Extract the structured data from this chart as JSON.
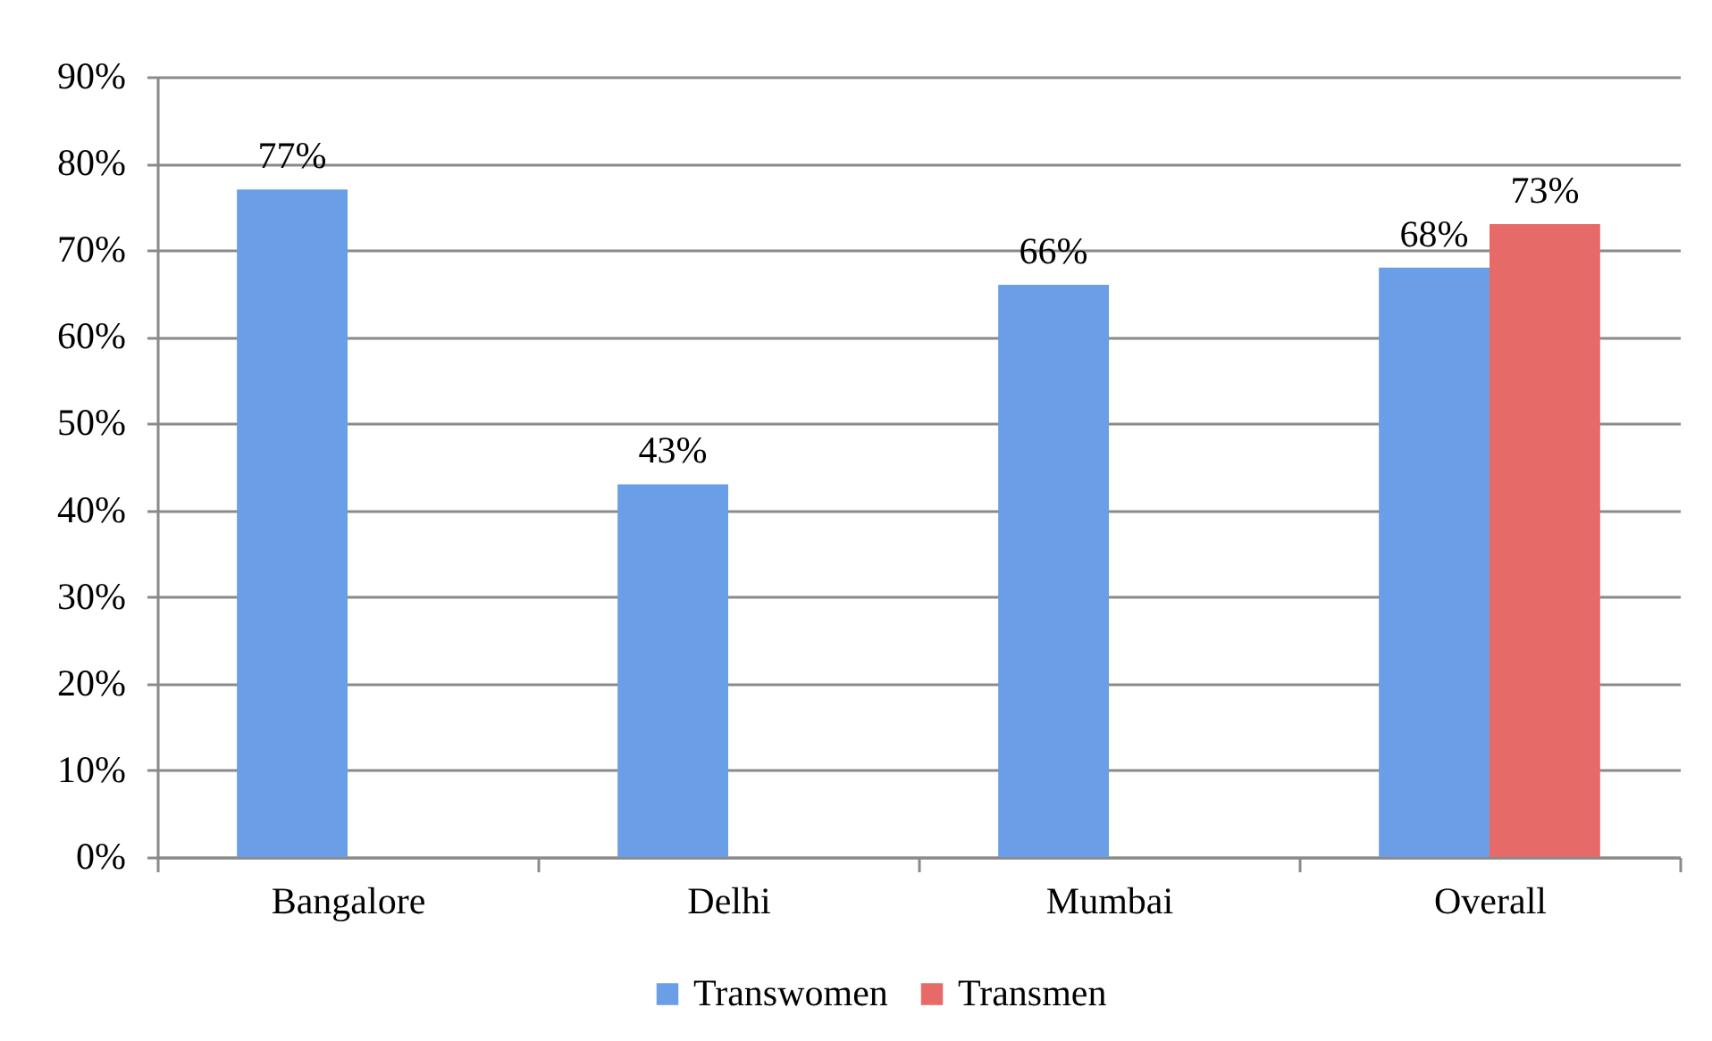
{
  "chart_data": {
    "type": "bar",
    "categories": [
      "Bangalore",
      "Delhi",
      "Mumbai",
      "Overall"
    ],
    "series": [
      {
        "name": "Transwomen",
        "color": "#6a9ee6",
        "values": [
          77,
          43,
          66,
          68
        ],
        "value_labels": [
          "77%",
          "43%",
          "66%",
          "68%"
        ]
      },
      {
        "name": "Transmen",
        "color": "#e66b68",
        "values": [
          null,
          null,
          null,
          73
        ],
        "value_labels": [
          null,
          null,
          null,
          "73%"
        ]
      }
    ],
    "ylim": [
      0,
      90
    ],
    "yticks": [
      {
        "value": 0,
        "label": "0%"
      },
      {
        "value": 10,
        "label": "10%"
      },
      {
        "value": 20,
        "label": "20%"
      },
      {
        "value": 30,
        "label": "30%"
      },
      {
        "value": 40,
        "label": "40%"
      },
      {
        "value": 50,
        "label": "50%"
      },
      {
        "value": 60,
        "label": "60%"
      },
      {
        "value": 70,
        "label": "70%"
      },
      {
        "value": 80,
        "label": "80%"
      },
      {
        "value": 90,
        "label": "90%"
      }
    ],
    "grid": "y",
    "legend": "bottom"
  }
}
